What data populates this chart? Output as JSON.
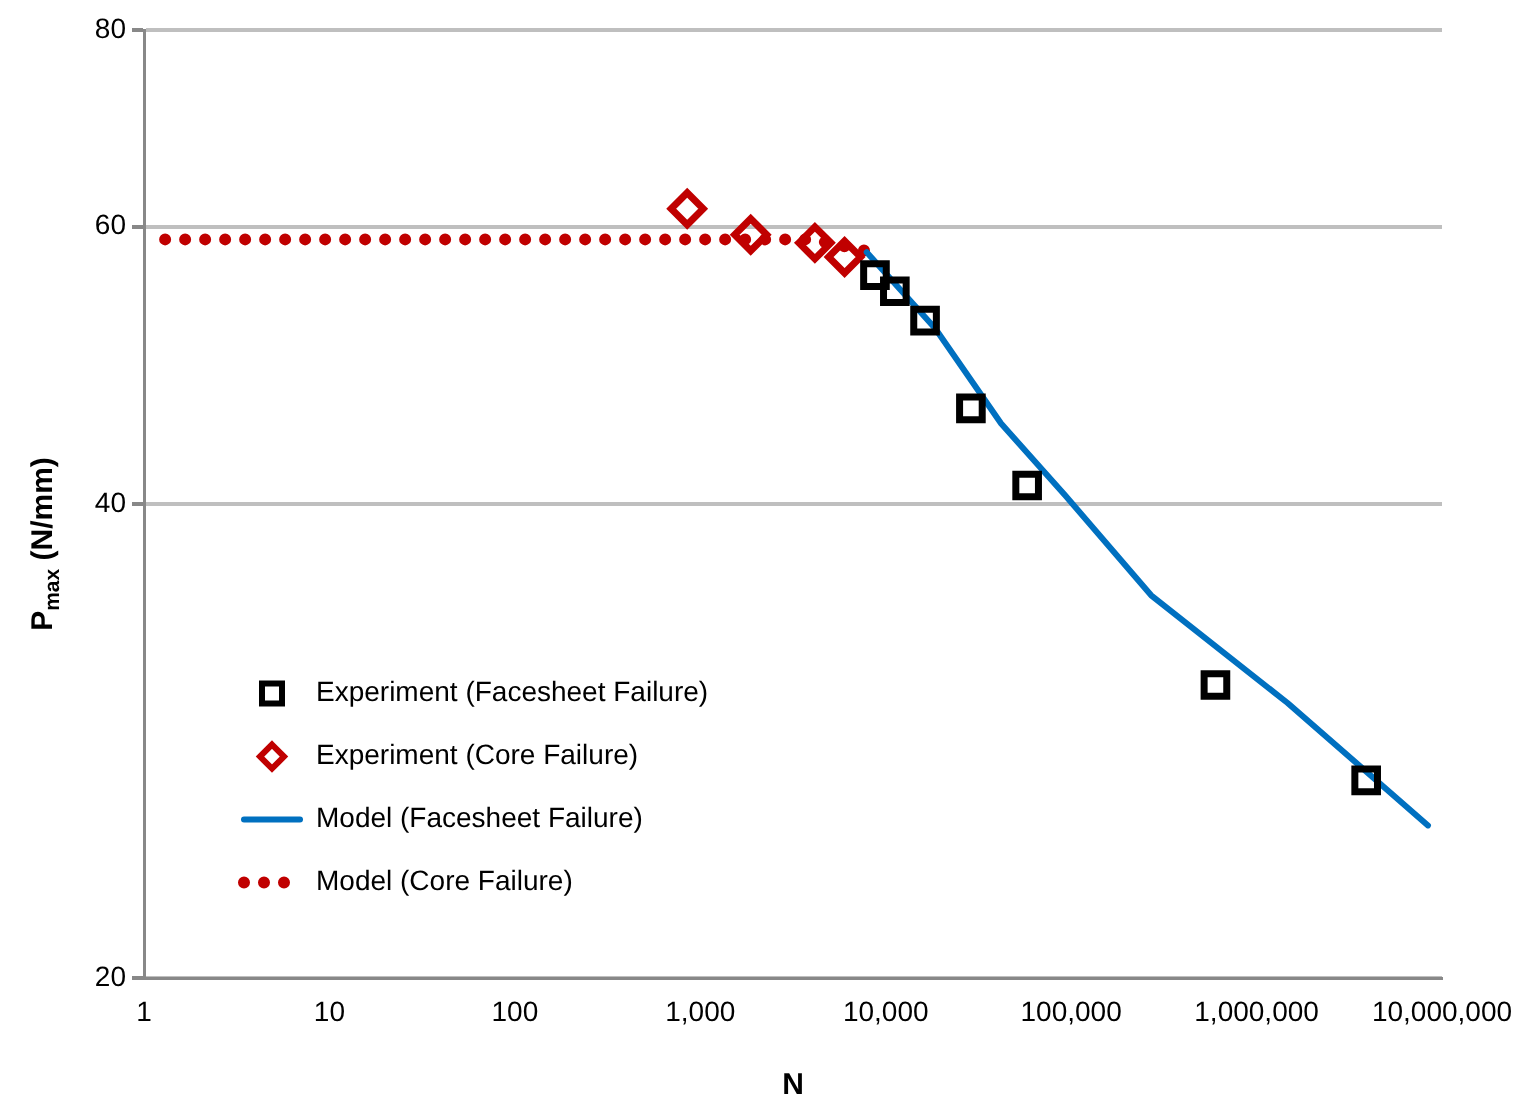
{
  "chart_data": {
    "type": "scatter",
    "xlabel": "N",
    "ylabel": "P$_{max}$ (N/mm)",
    "log": "xy",
    "xlim": [
      1,
      10000000
    ],
    "xticks": [
      1,
      10,
      100,
      {
        "value": 1000,
        "label": "1,000"
      },
      {
        "value": 10000,
        "label": "10,000"
      },
      {
        "value": 100000,
        "label": "100,000"
      },
      {
        "value": 1000000,
        "label": "1,000,000"
      },
      {
        "value": 10000000,
        "label": "10,000,000"
      }
    ],
    "ylim": [
      20,
      80
    ],
    "yticks": [
      20,
      40,
      60,
      80
    ],
    "grid": "y",
    "legend": "left",
    "series": [
      {
        "name": "Experiment (Facesheet Failure)",
        "marker": "square",
        "color": "#000000",
        "x": [
          8750,
          11200,
          16300,
          28800,
          57900,
          600000,
          3900000
        ],
        "values": [
          55.9,
          54.6,
          52.3,
          46.0,
          41.1,
          30.7,
          26.7
        ]
      },
      {
        "name": "Experiment (Core Failure)",
        "marker": "diamond",
        "color": "#c00000",
        "x": [
          850,
          1870,
          4150,
          6000
        ],
        "values": [
          61.6,
          59.3,
          58.6,
          57.4
        ]
      },
      {
        "name": "Model (Facesheet Failure)",
        "type": "line",
        "marker": "none",
        "line_style": "solid",
        "color": "#0070c0",
        "x": [
          7900,
          18500,
          41900,
          93000,
          270000,
          1470000,
          8400000
        ],
        "values": [
          57.8,
          51.7,
          45.0,
          40.5,
          35.0,
          29.9,
          25.0
        ]
      },
      {
        "name": "Model (Core Failure)",
        "type": "line",
        "marker": "none",
        "line_style": "dotted",
        "color": "#c00000",
        "x": [
          1.3,
          4000,
          8500
        ],
        "values": [
          58.9,
          58.9,
          57.8
        ]
      }
    ]
  }
}
